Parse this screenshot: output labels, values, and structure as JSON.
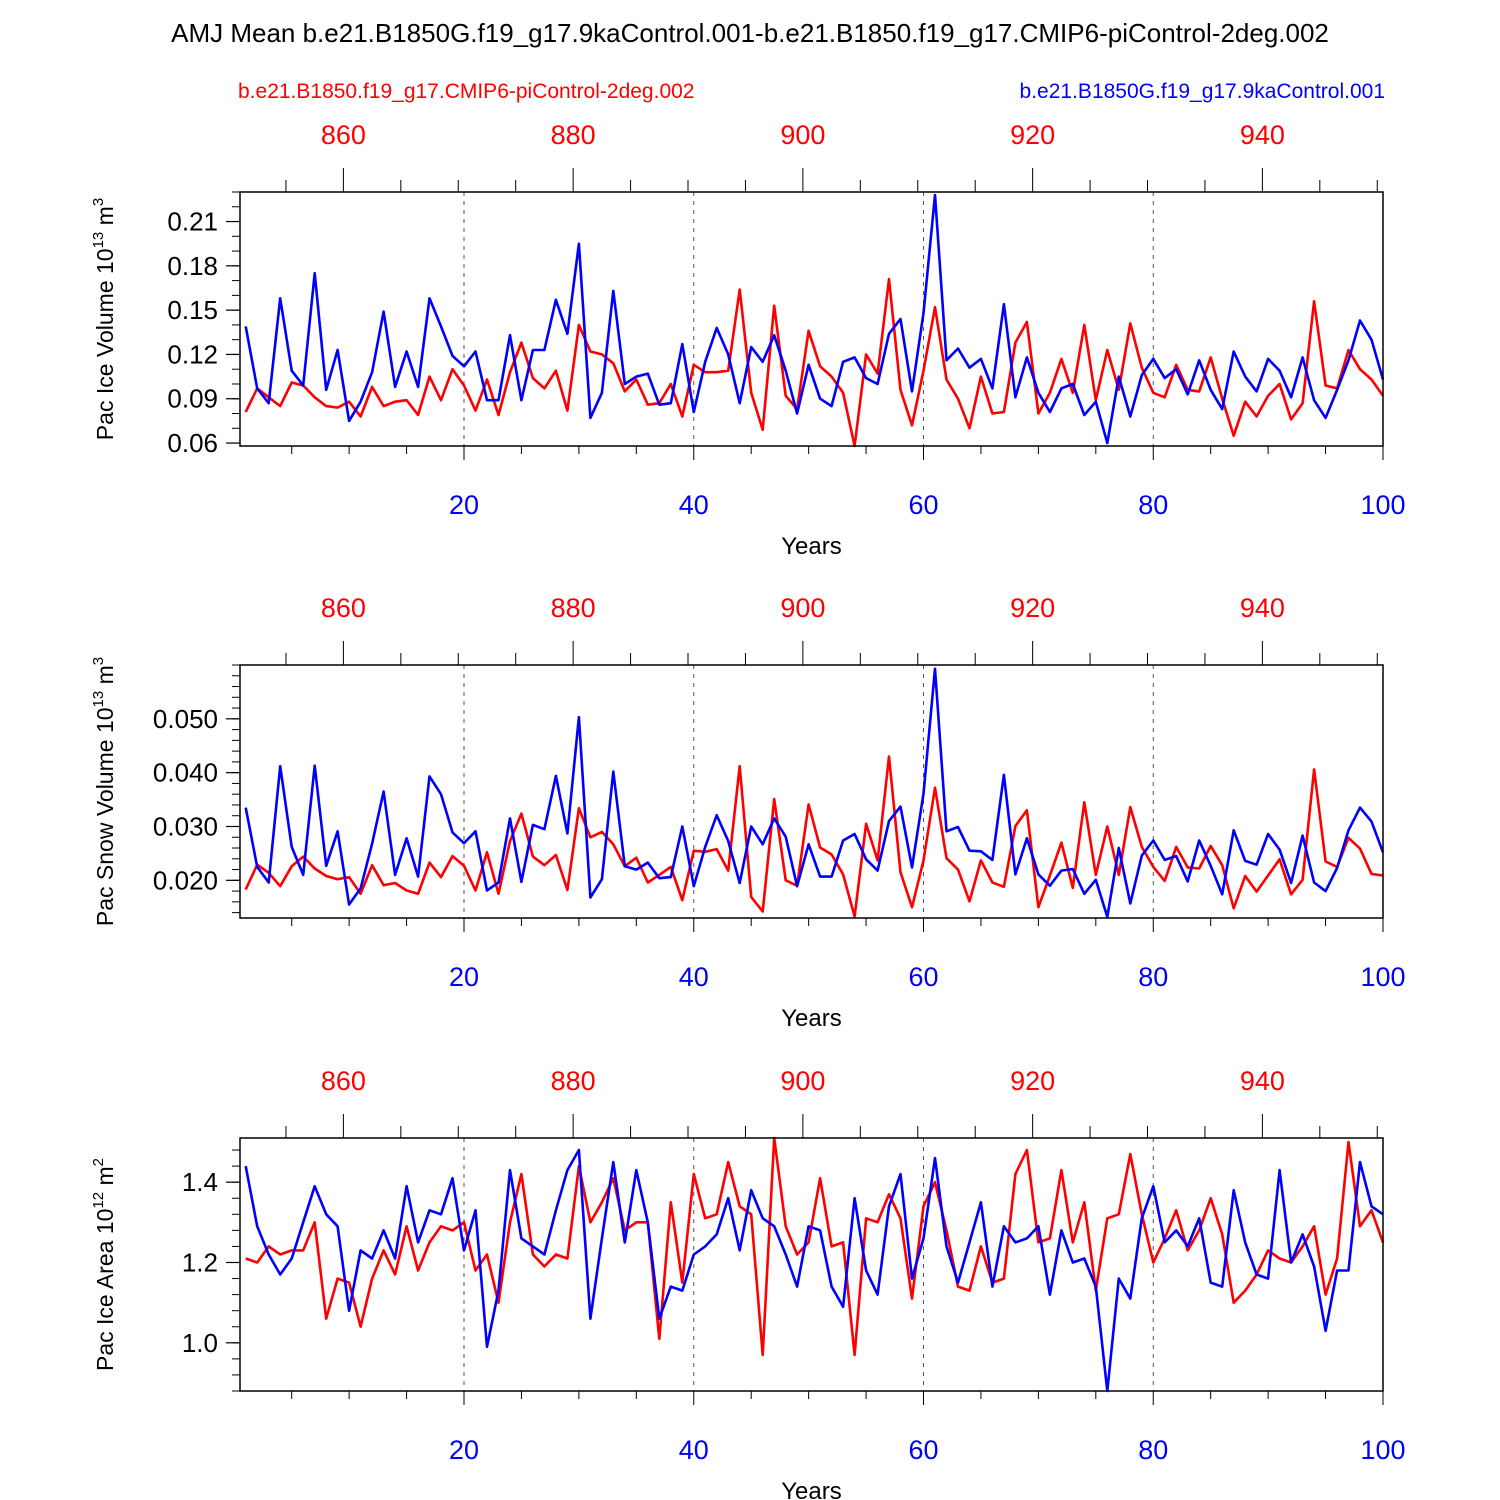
{
  "title": "AMJ Mean b.e21.B1850G.f19_g17.9kaControl.001-b.e21.B1850.f19_g17.CMIP6-piControl-2deg.002",
  "legend": {
    "control": {
      "label": "b.e21.B1850.f19_g17.CMIP6-piControl-2deg.002",
      "color": "#ff0000"
    },
    "experiment": {
      "label": "b.e21.B1850G.f19_g17.9kaControl.001",
      "color": "#0000ff"
    }
  },
  "chart_data": [
    {
      "type": "line",
      "ylabel_main": "Pac Ice Volume 10",
      "ylabel_exp": "13",
      "ylabel_unit": " m",
      "ylabel_unit_exp": "3",
      "xlabel": "Years",
      "xlim": [
        0.5,
        100
      ],
      "ylim": [
        0.058,
        0.23
      ],
      "yticks": [
        0.06,
        0.09,
        0.12,
        0.15,
        0.18,
        0.21
      ],
      "ytick_labels": [
        "0.06",
        "0.09",
        "0.12",
        "0.15",
        "0.18",
        "0.21"
      ],
      "yminor": 0.01,
      "xticks_bottom": [
        20,
        40,
        60,
        80,
        100
      ],
      "xtick_labels_bottom": [
        "20",
        "40",
        "60",
        "80",
        "100"
      ],
      "xticks_top": [
        9.5,
        29.5,
        49.5,
        69.5,
        89.5
      ],
      "xtick_labels_top": [
        "860",
        "880",
        "900",
        "920",
        "940"
      ],
      "gridlines_x": [
        20,
        40,
        60,
        80
      ],
      "series": [
        {
          "name": "b.e21.B1850G.f19_g17.9kaControl.001",
          "color": "#0000ff",
          "values": [
            0.139,
            0.097,
            0.087,
            0.158,
            0.109,
            0.099,
            0.175,
            0.096,
            0.123,
            0.075,
            0.088,
            0.108,
            0.149,
            0.098,
            0.122,
            0.098,
            0.158,
            0.139,
            0.119,
            0.112,
            0.122,
            0.089,
            0.089,
            0.133,
            0.089,
            0.123,
            0.123,
            0.157,
            0.134,
            0.195,
            0.077,
            0.094,
            0.163,
            0.1,
            0.105,
            0.107,
            0.086,
            0.087,
            0.127,
            0.081,
            0.115,
            0.138,
            0.12,
            0.087,
            0.125,
            0.115,
            0.133,
            0.109,
            0.08,
            0.113,
            0.09,
            0.085,
            0.115,
            0.118,
            0.104,
            0.1,
            0.134,
            0.144,
            0.095,
            0.148,
            0.228,
            0.116,
            0.124,
            0.111,
            0.117,
            0.097,
            0.154,
            0.091,
            0.118,
            0.094,
            0.081,
            0.097,
            0.1,
            0.079,
            0.088,
            0.06,
            0.105,
            0.078,
            0.106,
            0.117,
            0.104,
            0.11,
            0.093,
            0.116,
            0.096,
            0.083,
            0.122,
            0.105,
            0.095,
            0.117,
            0.109,
            0.091,
            0.118,
            0.089,
            0.077,
            0.096,
            0.116,
            0.143,
            0.13,
            0.103
          ]
        },
        {
          "name": "b.e21.B1850.f19_g17.CMIP6-piControl-2deg.002",
          "color": "#ff0000",
          "values": [
            0.081,
            0.097,
            0.091,
            0.085,
            0.101,
            0.099,
            0.091,
            0.085,
            0.084,
            0.088,
            0.078,
            0.098,
            0.085,
            0.088,
            0.089,
            0.079,
            0.105,
            0.089,
            0.11,
            0.099,
            0.082,
            0.103,
            0.079,
            0.108,
            0.128,
            0.104,
            0.097,
            0.109,
            0.082,
            0.14,
            0.122,
            0.12,
            0.114,
            0.095,
            0.103,
            0.086,
            0.087,
            0.1,
            0.078,
            0.113,
            0.108,
            0.108,
            0.109,
            0.164,
            0.094,
            0.069,
            0.153,
            0.092,
            0.083,
            0.136,
            0.112,
            0.105,
            0.094,
            0.058,
            0.12,
            0.107,
            0.171,
            0.096,
            0.072,
            0.109,
            0.152,
            0.103,
            0.09,
            0.07,
            0.105,
            0.08,
            0.081,
            0.128,
            0.142,
            0.08,
            0.094,
            0.117,
            0.094,
            0.14,
            0.089,
            0.123,
            0.096,
            0.141,
            0.111,
            0.094,
            0.091,
            0.113,
            0.096,
            0.095,
            0.118,
            0.09,
            0.065,
            0.088,
            0.078,
            0.092,
            0.1,
            0.076,
            0.087,
            0.156,
            0.099,
            0.097,
            0.123,
            0.11,
            0.103,
            0.092
          ]
        }
      ]
    },
    {
      "type": "line",
      "ylabel_main": "Pac Snow Volume 10",
      "ylabel_exp": "13",
      "ylabel_unit": " m",
      "ylabel_unit_exp": "3",
      "xlabel": "Years",
      "xlim": [
        0.5,
        100
      ],
      "ylim": [
        0.013,
        0.06
      ],
      "yticks": [
        0.02,
        0.03,
        0.04,
        0.05
      ],
      "ytick_labels": [
        "0.020",
        "0.030",
        "0.040",
        "0.050"
      ],
      "yminor": 0.002,
      "xticks_bottom": [
        20,
        40,
        60,
        80,
        100
      ],
      "xtick_labels_bottom": [
        "20",
        "40",
        "60",
        "80",
        "100"
      ],
      "xticks_top": [
        9.5,
        29.5,
        49.5,
        69.5,
        89.5
      ],
      "xtick_labels_top": [
        "860",
        "880",
        "900",
        "920",
        "940"
      ],
      "gridlines_x": [
        20,
        40,
        60,
        80
      ],
      "series": [
        {
          "name": "b.e21.B1850G.f19_g17.9kaControl.001",
          "color": "#0000ff",
          "values": [
            0.0335,
            0.0225,
            0.0196,
            0.0412,
            0.0262,
            0.021,
            0.0413,
            0.0227,
            0.0291,
            0.0155,
            0.0185,
            0.0268,
            0.0365,
            0.021,
            0.0278,
            0.0207,
            0.0393,
            0.036,
            0.0289,
            0.0269,
            0.0291,
            0.0181,
            0.0196,
            0.0315,
            0.0197,
            0.0303,
            0.0295,
            0.0394,
            0.0287,
            0.0503,
            0.0168,
            0.0202,
            0.0402,
            0.0226,
            0.022,
            0.0233,
            0.0204,
            0.0206,
            0.03,
            0.0189,
            0.0262,
            0.0321,
            0.0273,
            0.0195,
            0.03,
            0.0267,
            0.0315,
            0.0281,
            0.0189,
            0.0267,
            0.0207,
            0.0207,
            0.0274,
            0.0286,
            0.0239,
            0.0218,
            0.031,
            0.0337,
            0.0224,
            0.0361,
            0.0593,
            0.0291,
            0.0299,
            0.0255,
            0.0254,
            0.0238,
            0.0396,
            0.0211,
            0.0278,
            0.0211,
            0.019,
            0.0218,
            0.0221,
            0.0175,
            0.0201,
            0.0132,
            0.026,
            0.0157,
            0.0246,
            0.0274,
            0.0238,
            0.0245,
            0.0198,
            0.0274,
            0.0227,
            0.0174,
            0.0293,
            0.0236,
            0.0229,
            0.0286,
            0.0257,
            0.0195,
            0.0283,
            0.0196,
            0.018,
            0.0223,
            0.0293,
            0.0335,
            0.0309,
            0.0252
          ]
        },
        {
          "name": "b.e21.B1850.f19_g17.CMIP6-piControl-2deg.002",
          "color": "#ff0000",
          "values": [
            0.0183,
            0.0229,
            0.0214,
            0.0189,
            0.0226,
            0.0244,
            0.0222,
            0.0208,
            0.0202,
            0.0206,
            0.0175,
            0.0228,
            0.0191,
            0.0195,
            0.0181,
            0.0175,
            0.0233,
            0.0206,
            0.0245,
            0.0227,
            0.0181,
            0.0252,
            0.0175,
            0.0273,
            0.0324,
            0.0244,
            0.0228,
            0.0247,
            0.0182,
            0.0334,
            0.028,
            0.029,
            0.0267,
            0.0226,
            0.0242,
            0.0196,
            0.021,
            0.0225,
            0.0163,
            0.0255,
            0.0253,
            0.0258,
            0.0218,
            0.0412,
            0.0169,
            0.0142,
            0.0351,
            0.02,
            0.019,
            0.0341,
            0.0261,
            0.0248,
            0.0211,
            0.0133,
            0.0305,
            0.0237,
            0.043,
            0.0215,
            0.015,
            0.0237,
            0.0372,
            0.0241,
            0.022,
            0.0161,
            0.0237,
            0.0196,
            0.0188,
            0.0301,
            0.033,
            0.015,
            0.0209,
            0.027,
            0.0186,
            0.0345,
            0.021,
            0.03,
            0.021,
            0.0336,
            0.0262,
            0.0225,
            0.0199,
            0.0262,
            0.0224,
            0.0222,
            0.0264,
            0.0228,
            0.0148,
            0.0208,
            0.0179,
            0.0209,
            0.0239,
            0.0174,
            0.0201,
            0.0406,
            0.0235,
            0.0225,
            0.0279,
            0.0259,
            0.0212,
            0.0209
          ]
        }
      ]
    },
    {
      "type": "line",
      "ylabel_main": "Pac Ice Area 10",
      "ylabel_exp": "12",
      "ylabel_unit": " m",
      "ylabel_unit_exp": "2",
      "xlabel": "Years",
      "xlim": [
        0.5,
        100
      ],
      "ylim": [
        0.88,
        1.51
      ],
      "yticks": [
        1.0,
        1.2,
        1.4
      ],
      "ytick_labels": [
        "1.0",
        "1.2",
        "1.4"
      ],
      "yminor": 0.04,
      "xticks_bottom": [
        20,
        40,
        60,
        80,
        100
      ],
      "xtick_labels_bottom": [
        "20",
        "40",
        "60",
        "80",
        "100"
      ],
      "xticks_top": [
        9.5,
        29.5,
        49.5,
        69.5,
        89.5
      ],
      "xtick_labels_top": [
        "860",
        "880",
        "900",
        "920",
        "940"
      ],
      "gridlines_x": [
        20,
        40,
        60,
        80
      ],
      "series": [
        {
          "name": "b.e21.B1850G.f19_g17.9kaControl.001",
          "color": "#0000ff",
          "values": [
            1.44,
            1.29,
            1.22,
            1.17,
            1.21,
            1.3,
            1.39,
            1.32,
            1.29,
            1.08,
            1.23,
            1.21,
            1.28,
            1.21,
            1.39,
            1.25,
            1.33,
            1.32,
            1.41,
            1.23,
            1.33,
            0.99,
            1.13,
            1.43,
            1.26,
            1.24,
            1.22,
            1.33,
            1.43,
            1.48,
            1.06,
            1.26,
            1.45,
            1.25,
            1.43,
            1.3,
            1.06,
            1.14,
            1.13,
            1.22,
            1.24,
            1.27,
            1.36,
            1.23,
            1.38,
            1.31,
            1.29,
            1.22,
            1.14,
            1.29,
            1.28,
            1.14,
            1.09,
            1.36,
            1.18,
            1.12,
            1.34,
            1.42,
            1.16,
            1.26,
            1.46,
            1.24,
            1.15,
            1.25,
            1.35,
            1.14,
            1.29,
            1.25,
            1.26,
            1.29,
            1.12,
            1.28,
            1.2,
            1.21,
            1.14,
            0.88,
            1.16,
            1.11,
            1.31,
            1.39,
            1.25,
            1.28,
            1.24,
            1.31,
            1.15,
            1.14,
            1.38,
            1.25,
            1.17,
            1.16,
            1.43,
            1.2,
            1.27,
            1.19,
            1.03,
            1.18,
            1.18,
            1.45,
            1.34,
            1.32
          ]
        },
        {
          "name": "b.e21.B1850.f19_g17.CMIP6-piControl-2deg.002",
          "color": "#ff0000",
          "values": [
            1.21,
            1.2,
            1.24,
            1.22,
            1.23,
            1.23,
            1.3,
            1.06,
            1.16,
            1.15,
            1.04,
            1.16,
            1.23,
            1.17,
            1.29,
            1.18,
            1.25,
            1.29,
            1.28,
            1.3,
            1.18,
            1.22,
            1.1,
            1.3,
            1.42,
            1.22,
            1.19,
            1.22,
            1.21,
            1.44,
            1.3,
            1.35,
            1.41,
            1.28,
            1.3,
            1.3,
            1.01,
            1.35,
            1.15,
            1.42,
            1.31,
            1.32,
            1.45,
            1.34,
            1.32,
            0.97,
            1.51,
            1.29,
            1.22,
            1.25,
            1.41,
            1.24,
            1.25,
            0.97,
            1.31,
            1.3,
            1.37,
            1.31,
            1.11,
            1.34,
            1.4,
            1.28,
            1.14,
            1.13,
            1.24,
            1.15,
            1.16,
            1.42,
            1.48,
            1.25,
            1.26,
            1.43,
            1.25,
            1.35,
            1.13,
            1.31,
            1.32,
            1.47,
            1.32,
            1.2,
            1.26,
            1.33,
            1.23,
            1.28,
            1.36,
            1.27,
            1.1,
            1.13,
            1.17,
            1.23,
            1.21,
            1.2,
            1.24,
            1.29,
            1.12,
            1.21,
            1.5,
            1.29,
            1.33,
            1.25
          ]
        }
      ]
    }
  ]
}
